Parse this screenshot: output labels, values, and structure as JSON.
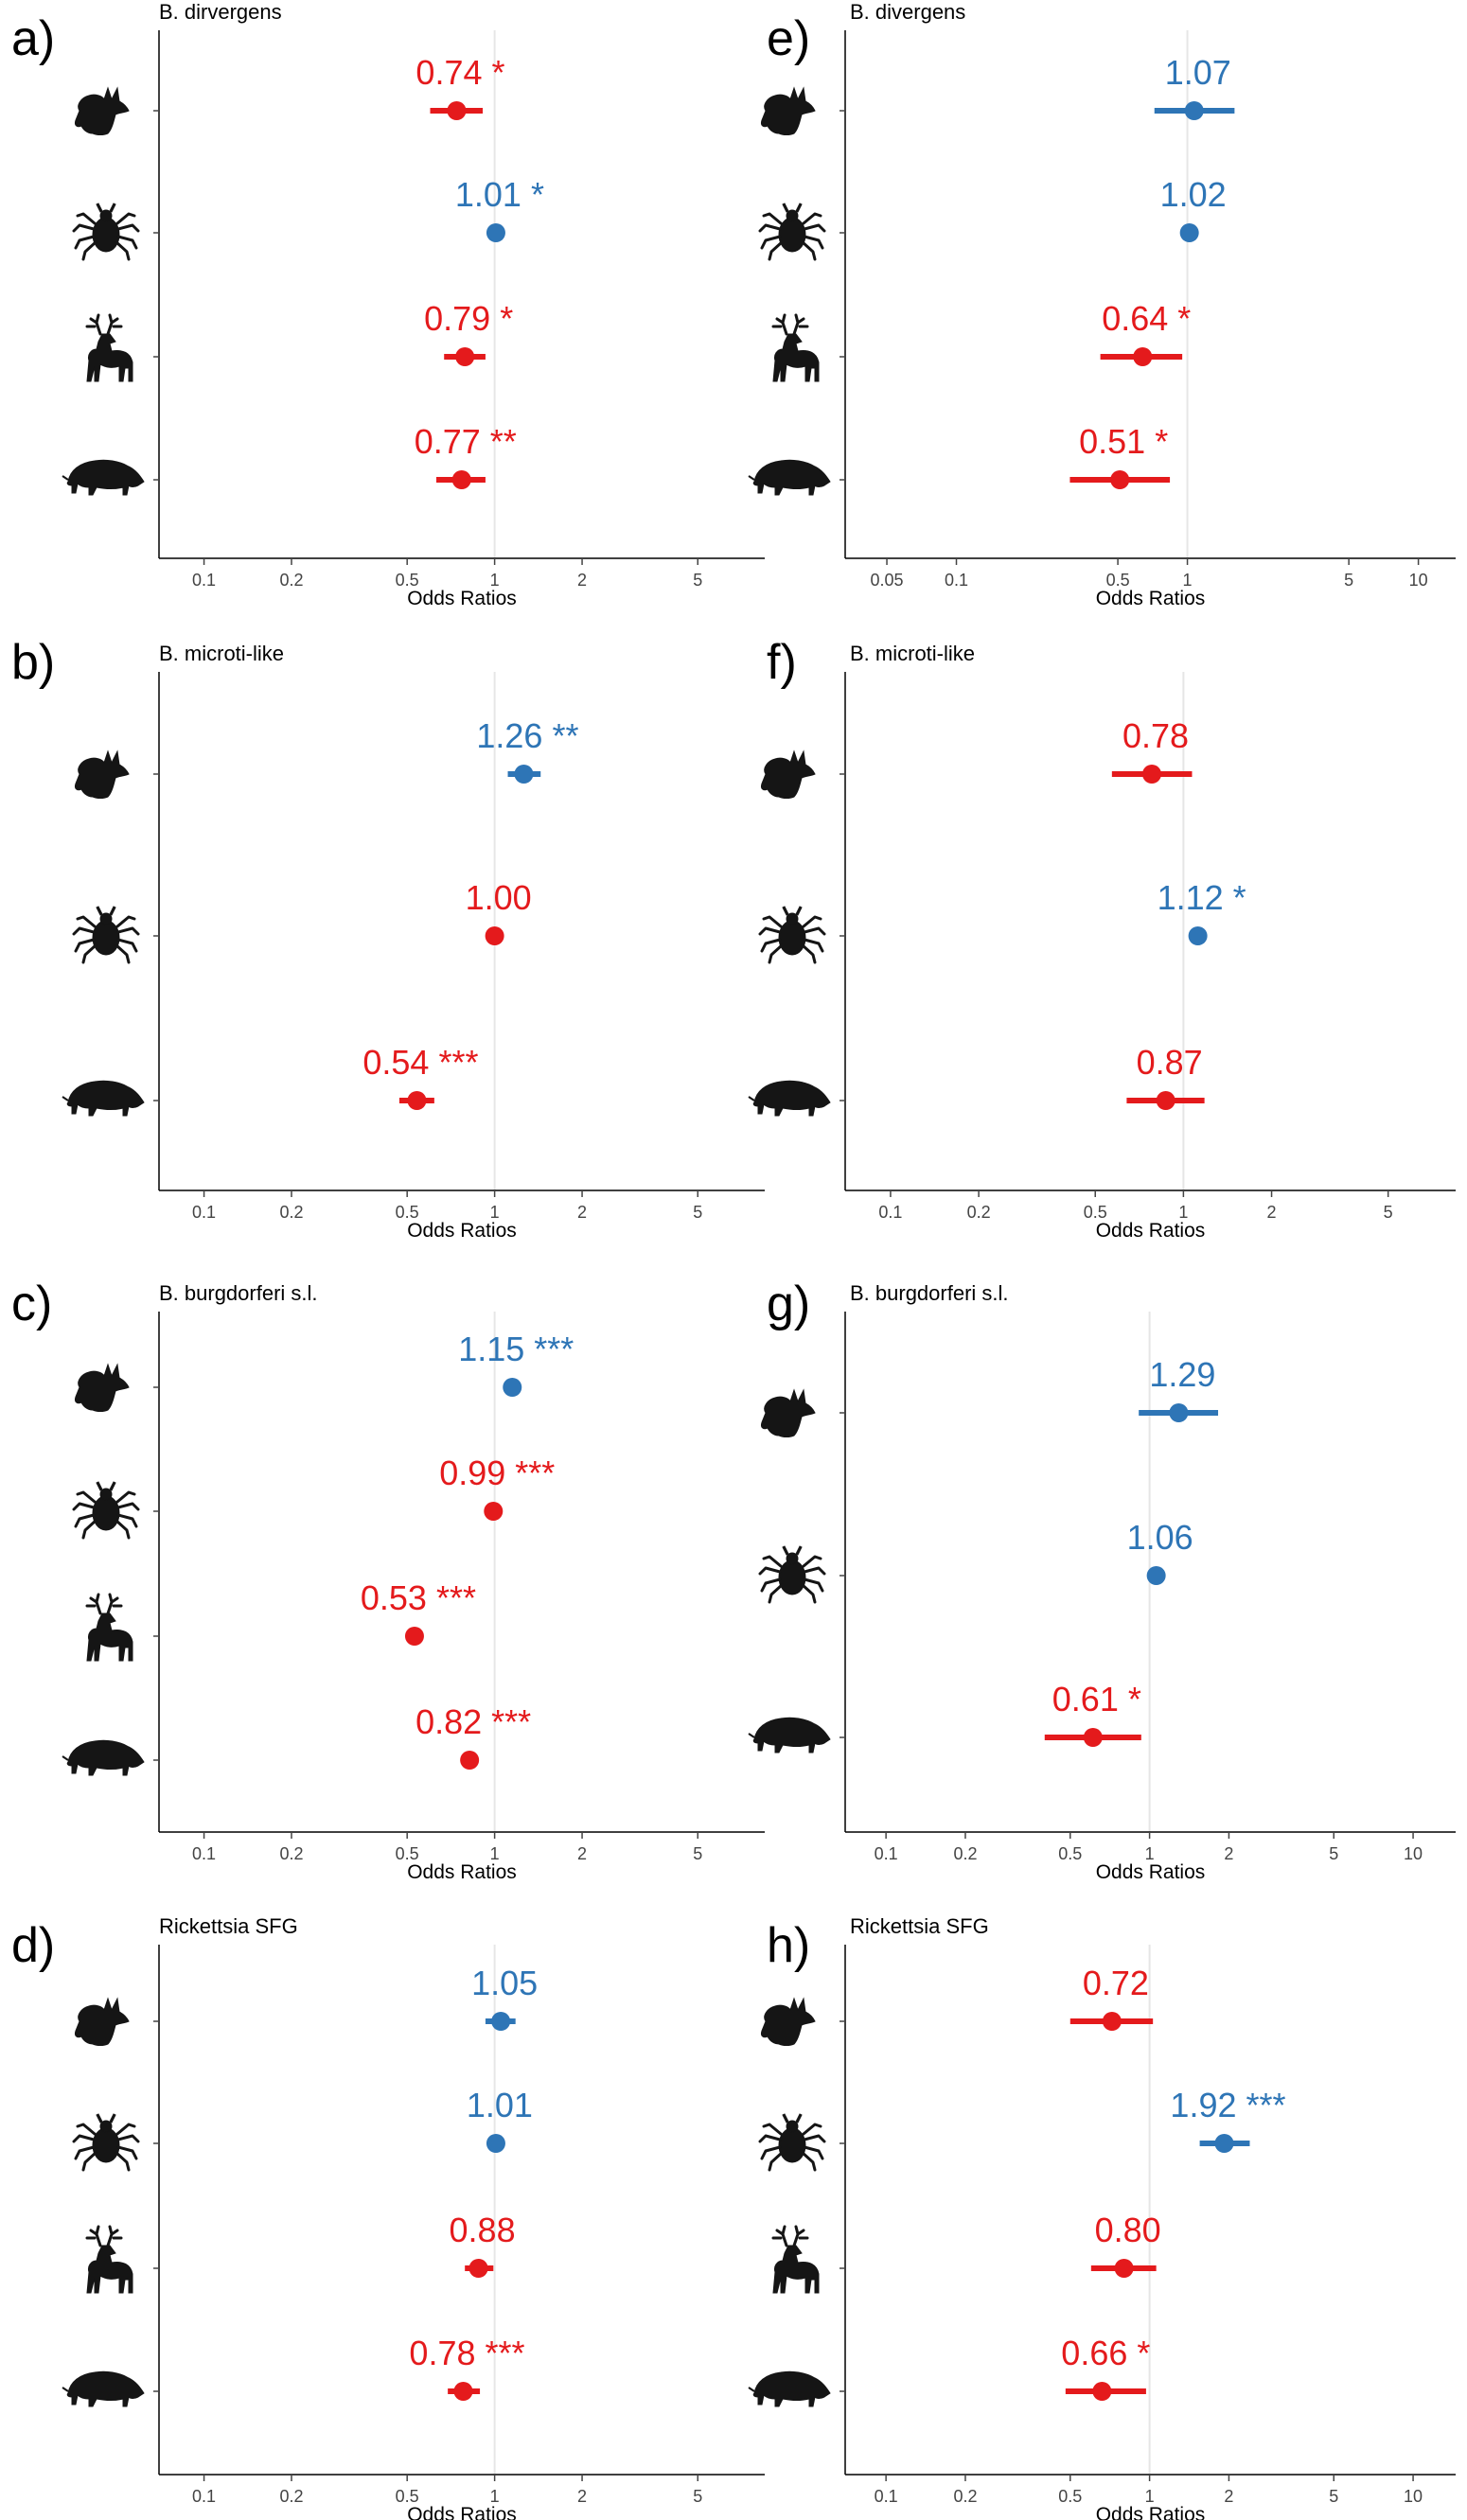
{
  "figure": {
    "xlabel": "Odds Ratios",
    "colors": {
      "positive": "#2e75b6",
      "negative": "#e41a1c",
      "axis": "#000000",
      "refline": "#e6e6e6",
      "tick": "#444444",
      "icon": "#151515"
    }
  },
  "chart_data": [
    {
      "panel": "a)",
      "title": "B. dirvergens",
      "type": "forest",
      "xscale": "log",
      "xlim": [
        0.07,
        8.5
      ],
      "ticks": [
        {
          "value": 0.1,
          "label": "0.1"
        },
        {
          "value": 0.2,
          "label": "0.2"
        },
        {
          "value": 0.5,
          "label": "0.5"
        },
        {
          "value": 1,
          "label": "1"
        },
        {
          "value": 2,
          "label": "2"
        },
        {
          "value": 5,
          "label": "5"
        }
      ],
      "rows": [
        {
          "icon": "fox-icon",
          "or": 0.74,
          "lo": 0.6,
          "hi": 0.91,
          "label": "0.74 *",
          "sign": "negative"
        },
        {
          "icon": "tick-icon",
          "or": 1.01,
          "lo": 1.01,
          "hi": 1.01,
          "label": "1.01 *",
          "sign": "positive"
        },
        {
          "icon": "deer-icon",
          "or": 0.79,
          "lo": 0.67,
          "hi": 0.93,
          "label": "0.79 *",
          "sign": "negative"
        },
        {
          "icon": "boar-icon",
          "or": 0.77,
          "lo": 0.63,
          "hi": 0.93,
          "label": "0.77 **",
          "sign": "negative"
        }
      ]
    },
    {
      "panel": "e)",
      "title": "B. divergens",
      "type": "forest",
      "xscale": "log",
      "xlim": [
        0.033,
        14.5
      ],
      "ticks": [
        {
          "value": 0.05,
          "label": "0.05"
        },
        {
          "value": 0.1,
          "label": "0.1"
        },
        {
          "value": 0.5,
          "label": "0.5"
        },
        {
          "value": 1,
          "label": "1"
        },
        {
          "value": 5,
          "label": "5"
        },
        {
          "value": 10,
          "label": "10"
        }
      ],
      "rows": [
        {
          "icon": "fox-icon",
          "or": 1.07,
          "lo": 0.72,
          "hi": 1.6,
          "label": "1.07",
          "sign": "positive"
        },
        {
          "icon": "tick-icon",
          "or": 1.02,
          "lo": 1.02,
          "hi": 1.02,
          "label": "1.02",
          "sign": "positive"
        },
        {
          "icon": "deer-icon",
          "or": 0.64,
          "lo": 0.42,
          "hi": 0.95,
          "label": "0.64 *",
          "sign": "negative"
        },
        {
          "icon": "boar-icon",
          "or": 0.51,
          "lo": 0.31,
          "hi": 0.84,
          "label": "0.51 *",
          "sign": "negative"
        }
      ]
    },
    {
      "panel": "b)",
      "title": "B. microti-like",
      "type": "forest",
      "xscale": "log",
      "xlim": [
        0.07,
        8.5
      ],
      "ticks": [
        {
          "value": 0.1,
          "label": "0.1"
        },
        {
          "value": 0.2,
          "label": "0.2"
        },
        {
          "value": 0.5,
          "label": "0.5"
        },
        {
          "value": 1,
          "label": "1"
        },
        {
          "value": 2,
          "label": "2"
        },
        {
          "value": 5,
          "label": "5"
        }
      ],
      "rows": [
        {
          "icon": "fox-icon",
          "or": 1.26,
          "lo": 1.11,
          "hi": 1.44,
          "label": "1.26 **",
          "sign": "positive"
        },
        {
          "icon": "tick-icon",
          "or": 1.0,
          "lo": 1.0,
          "hi": 1.0,
          "label": "1.00",
          "sign": "negative"
        },
        {
          "icon": "boar-icon",
          "or": 0.54,
          "lo": 0.47,
          "hi": 0.62,
          "label": "0.54 ***",
          "sign": "negative"
        }
      ]
    },
    {
      "panel": "f)",
      "title": "B. microti-like",
      "type": "forest",
      "xscale": "log",
      "xlim": [
        0.07,
        8.5
      ],
      "ticks": [
        {
          "value": 0.1,
          "label": "0.1"
        },
        {
          "value": 0.2,
          "label": "0.2"
        },
        {
          "value": 0.5,
          "label": "0.5"
        },
        {
          "value": 1,
          "label": "1"
        },
        {
          "value": 2,
          "label": "2"
        },
        {
          "value": 5,
          "label": "5"
        }
      ],
      "rows": [
        {
          "icon": "fox-icon",
          "or": 0.78,
          "lo": 0.57,
          "hi": 1.07,
          "label": "0.78",
          "sign": "negative"
        },
        {
          "icon": "tick-icon",
          "or": 1.12,
          "lo": 1.05,
          "hi": 1.2,
          "label": "1.12 *",
          "sign": "positive"
        },
        {
          "icon": "boar-icon",
          "or": 0.87,
          "lo": 0.64,
          "hi": 1.18,
          "label": "0.87",
          "sign": "negative"
        }
      ]
    },
    {
      "panel": "c)",
      "title": "B. burgdorferi s.l.",
      "type": "forest",
      "xscale": "log",
      "xlim": [
        0.07,
        8.5
      ],
      "ticks": [
        {
          "value": 0.1,
          "label": "0.1"
        },
        {
          "value": 0.2,
          "label": "0.2"
        },
        {
          "value": 0.5,
          "label": "0.5"
        },
        {
          "value": 1,
          "label": "1"
        },
        {
          "value": 2,
          "label": "2"
        },
        {
          "value": 5,
          "label": "5"
        }
      ],
      "rows": [
        {
          "icon": "fox-icon",
          "or": 1.15,
          "lo": 1.15,
          "hi": 1.15,
          "label": "1.15 ***",
          "sign": "positive"
        },
        {
          "icon": "tick-icon",
          "or": 0.99,
          "lo": 0.99,
          "hi": 0.99,
          "label": "0.99 ***",
          "sign": "negative"
        },
        {
          "icon": "deer-icon",
          "or": 0.53,
          "lo": 0.53,
          "hi": 0.53,
          "label": "0.53 ***",
          "sign": "negative"
        },
        {
          "icon": "boar-icon",
          "or": 0.82,
          "lo": 0.82,
          "hi": 0.82,
          "label": "0.82 ***",
          "sign": "negative"
        }
      ]
    },
    {
      "panel": "g)",
      "title": "B. burgdorferi s.l.",
      "type": "forest",
      "xscale": "log",
      "xlim": [
        0.07,
        14.5
      ],
      "ticks": [
        {
          "value": 0.1,
          "label": "0.1"
        },
        {
          "value": 0.2,
          "label": "0.2"
        },
        {
          "value": 0.5,
          "label": "0.5"
        },
        {
          "value": 1,
          "label": "1"
        },
        {
          "value": 2,
          "label": "2"
        },
        {
          "value": 5,
          "label": "5"
        },
        {
          "value": 10,
          "label": "10"
        }
      ],
      "rows": [
        {
          "icon": "fox-icon",
          "or": 1.29,
          "lo": 0.91,
          "hi": 1.82,
          "label": "1.29",
          "sign": "positive"
        },
        {
          "icon": "tick-icon",
          "or": 1.06,
          "lo": 1.06,
          "hi": 1.06,
          "label": "1.06",
          "sign": "positive"
        },
        {
          "icon": "boar-icon",
          "or": 0.61,
          "lo": 0.4,
          "hi": 0.93,
          "label": "0.61 *",
          "sign": "negative"
        }
      ]
    },
    {
      "panel": "d)",
      "title": "Rickettsia SFG",
      "type": "forest",
      "xscale": "log",
      "xlim": [
        0.07,
        8.5
      ],
      "ticks": [
        {
          "value": 0.1,
          "label": "0.1"
        },
        {
          "value": 0.2,
          "label": "0.2"
        },
        {
          "value": 0.5,
          "label": "0.5"
        },
        {
          "value": 1,
          "label": "1"
        },
        {
          "value": 2,
          "label": "2"
        },
        {
          "value": 5,
          "label": "5"
        }
      ],
      "rows": [
        {
          "icon": "fox-icon",
          "or": 1.05,
          "lo": 0.93,
          "hi": 1.18,
          "label": "1.05",
          "sign": "positive"
        },
        {
          "icon": "tick-icon",
          "or": 1.01,
          "lo": 1.01,
          "hi": 1.01,
          "label": "1.01",
          "sign": "positive"
        },
        {
          "icon": "deer-icon",
          "or": 0.88,
          "lo": 0.79,
          "hi": 0.99,
          "label": "0.88",
          "sign": "negative"
        },
        {
          "icon": "boar-icon",
          "or": 0.78,
          "lo": 0.69,
          "hi": 0.89,
          "label": "0.78 ***",
          "sign": "negative"
        }
      ]
    },
    {
      "panel": "h)",
      "title": "Rickettsia SFG",
      "type": "forest",
      "xscale": "log",
      "xlim": [
        0.07,
        14.5
      ],
      "ticks": [
        {
          "value": 0.1,
          "label": "0.1"
        },
        {
          "value": 0.2,
          "label": "0.2"
        },
        {
          "value": 0.5,
          "label": "0.5"
        },
        {
          "value": 1,
          "label": "1"
        },
        {
          "value": 2,
          "label": "2"
        },
        {
          "value": 5,
          "label": "5"
        },
        {
          "value": 10,
          "label": "10"
        }
      ],
      "rows": [
        {
          "icon": "fox-icon",
          "or": 0.72,
          "lo": 0.5,
          "hi": 1.03,
          "label": "0.72",
          "sign": "negative"
        },
        {
          "icon": "tick-icon",
          "or": 1.92,
          "lo": 1.55,
          "hi": 2.4,
          "label": "1.92 ***",
          "sign": "positive"
        },
        {
          "icon": "deer-icon",
          "or": 0.8,
          "lo": 0.6,
          "hi": 1.06,
          "label": "0.80",
          "sign": "negative"
        },
        {
          "icon": "boar-icon",
          "or": 0.66,
          "lo": 0.48,
          "hi": 0.97,
          "label": "0.66 *",
          "sign": "negative"
        }
      ]
    }
  ]
}
